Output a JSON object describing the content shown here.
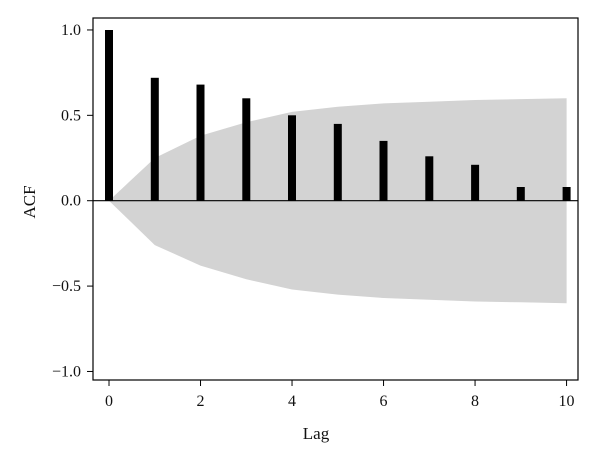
{
  "chart_data": {
    "type": "bar",
    "xlabel": "Lag",
    "ylabel": "ACF",
    "xlim": [
      -0.35,
      10.25
    ],
    "ylim": [
      -1.05,
      1.07
    ],
    "x_ticks": [
      0,
      2,
      4,
      6,
      8,
      10
    ],
    "x_tick_labels": [
      "0",
      "2",
      "4",
      "6",
      "8",
      "10"
    ],
    "y_ticks": [
      1.0,
      0.5,
      0.0,
      -0.5,
      -1.0
    ],
    "y_tick_labels": [
      "1.0",
      "0.5",
      "0.0",
      "−0.5",
      "−1.0"
    ],
    "lags": [
      0,
      1,
      2,
      3,
      4,
      5,
      6,
      7,
      8,
      9,
      10
    ],
    "values": [
      1.0,
      0.72,
      0.68,
      0.6,
      0.5,
      0.45,
      0.35,
      0.26,
      0.21,
      0.08,
      0.08
    ],
    "confidence_band": {
      "lags": [
        0,
        1,
        2,
        3,
        4,
        5,
        6,
        7,
        8,
        9,
        10
      ],
      "upper": [
        0.0,
        0.25,
        0.38,
        0.46,
        0.52,
        0.55,
        0.57,
        0.58,
        0.59,
        0.595,
        0.6
      ],
      "lower": [
        0.0,
        -0.26,
        -0.38,
        -0.46,
        -0.52,
        -0.55,
        -0.57,
        -0.58,
        -0.59,
        -0.595,
        -0.6
      ]
    },
    "colors": {
      "bars": "#000000",
      "band": "#d3d3d3",
      "axis": "#000000"
    },
    "grid": false,
    "legend": "none"
  }
}
